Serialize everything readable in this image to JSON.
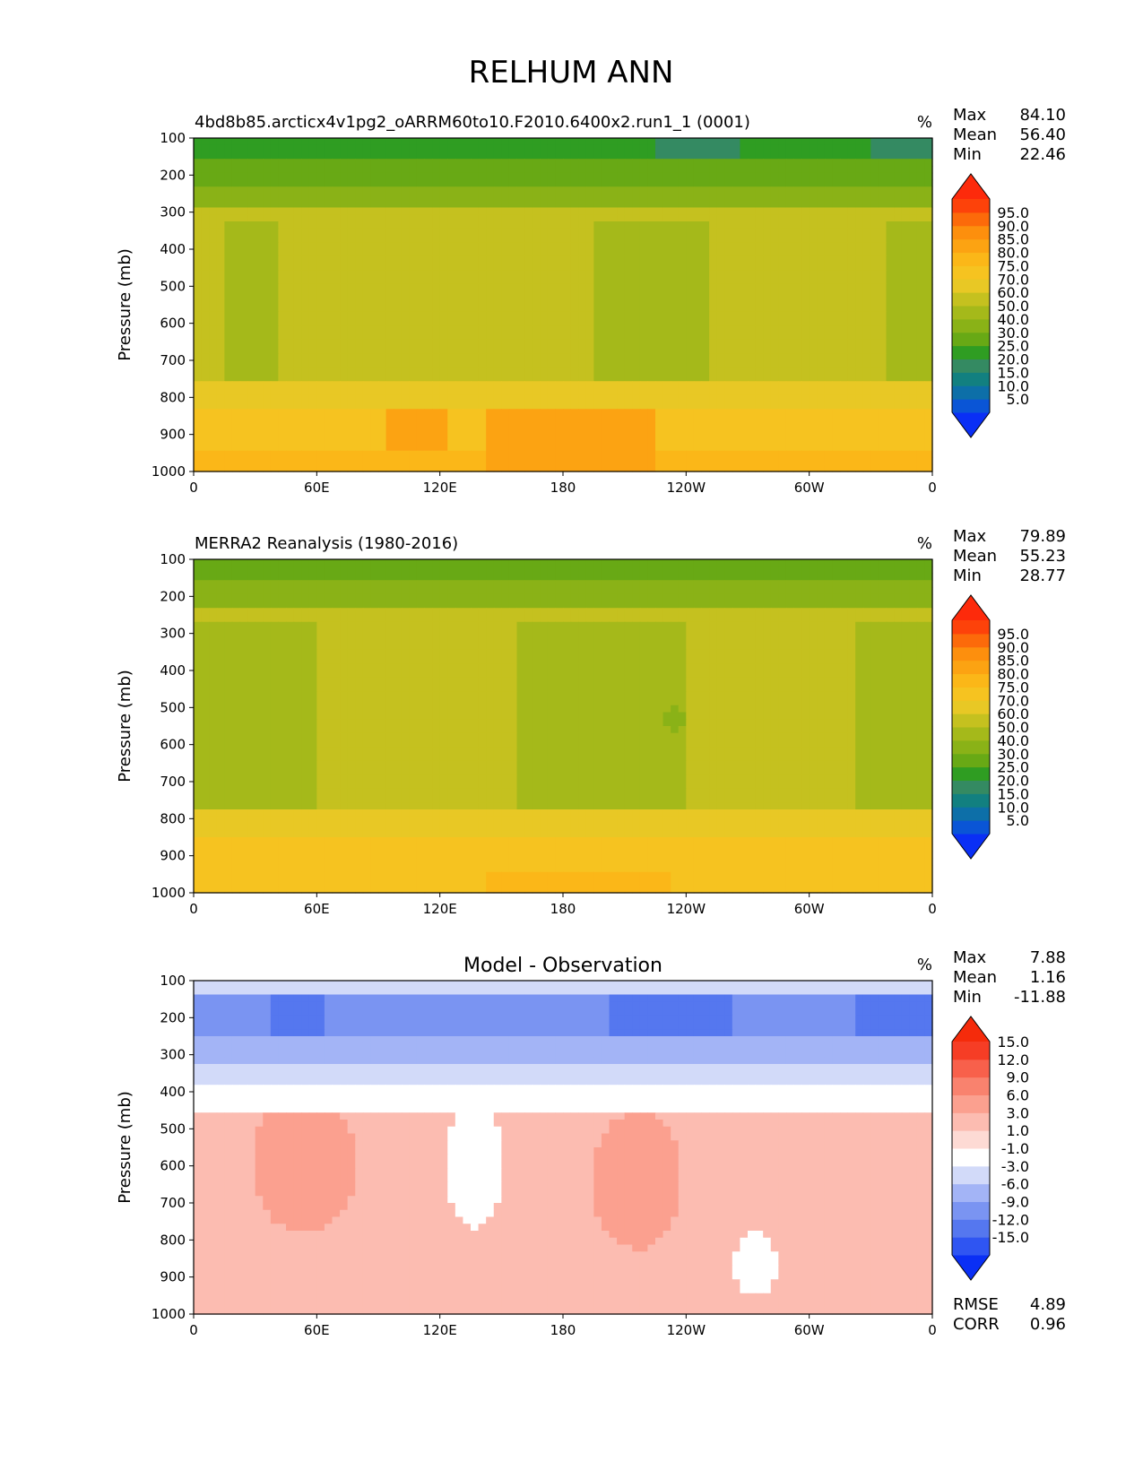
{
  "figure_title": "RELHUM ANN",
  "chart_data": [
    {
      "type": "heatmap",
      "subtype": "filled-contour",
      "title": "4bd8b85.arcticx4v1pg2_oARRM60to10.F2010.6400x2.run1_1 (0001)",
      "units": "%",
      "xlabel": "",
      "ylabel": "Pressure (mb)",
      "x_ticks": [
        "0",
        "60E",
        "120E",
        "180",
        "120W",
        "60W",
        "0"
      ],
      "y_ticks": [
        "100",
        "200",
        "300",
        "400",
        "500",
        "600",
        "700",
        "800",
        "900",
        "1000"
      ],
      "stats": [
        {
          "label": "Max",
          "value": "84.10"
        },
        {
          "label": "Mean",
          "value": "56.40"
        },
        {
          "label": "Min",
          "value": "22.46"
        }
      ],
      "colorbar": {
        "colors": [
          "#0a2ff5",
          "#0a55d6",
          "#0d6fa8",
          "#128080",
          "#348a62",
          "#2f9d22",
          "#68a915",
          "#8ab217",
          "#a5b91a",
          "#c5c11f",
          "#e8c825",
          "#f6c320",
          "#fbb718",
          "#fca312",
          "#fd8f0d",
          "#fc6a0a",
          "#fd420a",
          "#fd2a0b"
        ],
        "labels": [
          "5.0",
          "10.0",
          "15.0",
          "20.0",
          "25.0",
          "30.0",
          "40.0",
          "50.0",
          "60.0",
          "70.0",
          "75.0",
          "80.0",
          "85.0",
          "90.0",
          "95.0"
        ]
      }
    },
    {
      "type": "heatmap",
      "subtype": "filled-contour",
      "title": "MERRA2 Reanalysis (1980-2016)",
      "units": "%",
      "xlabel": "",
      "ylabel": "Pressure (mb)",
      "x_ticks": [
        "0",
        "60E",
        "120E",
        "180",
        "120W",
        "60W",
        "0"
      ],
      "y_ticks": [
        "100",
        "200",
        "300",
        "400",
        "500",
        "600",
        "700",
        "800",
        "900",
        "1000"
      ],
      "stats": [
        {
          "label": "Max",
          "value": "79.89"
        },
        {
          "label": "Mean",
          "value": "55.23"
        },
        {
          "label": "Min",
          "value": "28.77"
        }
      ],
      "colorbar": {
        "colors": [
          "#0a2ff5",
          "#0a55d6",
          "#0d6fa8",
          "#128080",
          "#348a62",
          "#2f9d22",
          "#68a915",
          "#8ab217",
          "#a5b91a",
          "#c5c11f",
          "#e8c825",
          "#f6c320",
          "#fbb718",
          "#fca312",
          "#fd8f0d",
          "#fc6a0a",
          "#fd420a",
          "#fd2a0b"
        ],
        "labels": [
          "5.0",
          "10.0",
          "15.0",
          "20.0",
          "25.0",
          "30.0",
          "40.0",
          "50.0",
          "60.0",
          "70.0",
          "75.0",
          "80.0",
          "85.0",
          "90.0",
          "95.0"
        ]
      }
    },
    {
      "type": "heatmap",
      "subtype": "filled-contour",
      "title": "Model - Observation",
      "units": "%",
      "xlabel": "",
      "ylabel": "Pressure (mb)",
      "x_ticks": [
        "0",
        "60E",
        "120E",
        "180",
        "120W",
        "60W",
        "0"
      ],
      "y_ticks": [
        "100",
        "200",
        "300",
        "400",
        "500",
        "600",
        "700",
        "800",
        "900",
        "1000"
      ],
      "stats": [
        {
          "label": "Max",
          "value": "7.88"
        },
        {
          "label": "Mean",
          "value": "1.16"
        },
        {
          "label": "Min",
          "value": "-11.88"
        }
      ],
      "extra_stats": [
        {
          "label": "RMSE",
          "value": "4.89"
        },
        {
          "label": "CORR",
          "value": "0.96"
        }
      ],
      "colorbar": {
        "colors": [
          "#0a2ff5",
          "#2f55f2",
          "#5577ef",
          "#7a94f2",
          "#a3b4f6",
          "#d2daf9",
          "#ffffff",
          "#fddad4",
          "#fcbcb1",
          "#fba08f",
          "#f9826e",
          "#f8604b",
          "#f63d25",
          "#f52b0b"
        ],
        "labels": [
          "-15.0",
          "-12.0",
          "-9.0",
          "-6.0",
          "-3.0",
          "-1.0",
          "1.0",
          "3.0",
          "6.0",
          "9.0",
          "12.0",
          "15.0"
        ]
      }
    }
  ]
}
